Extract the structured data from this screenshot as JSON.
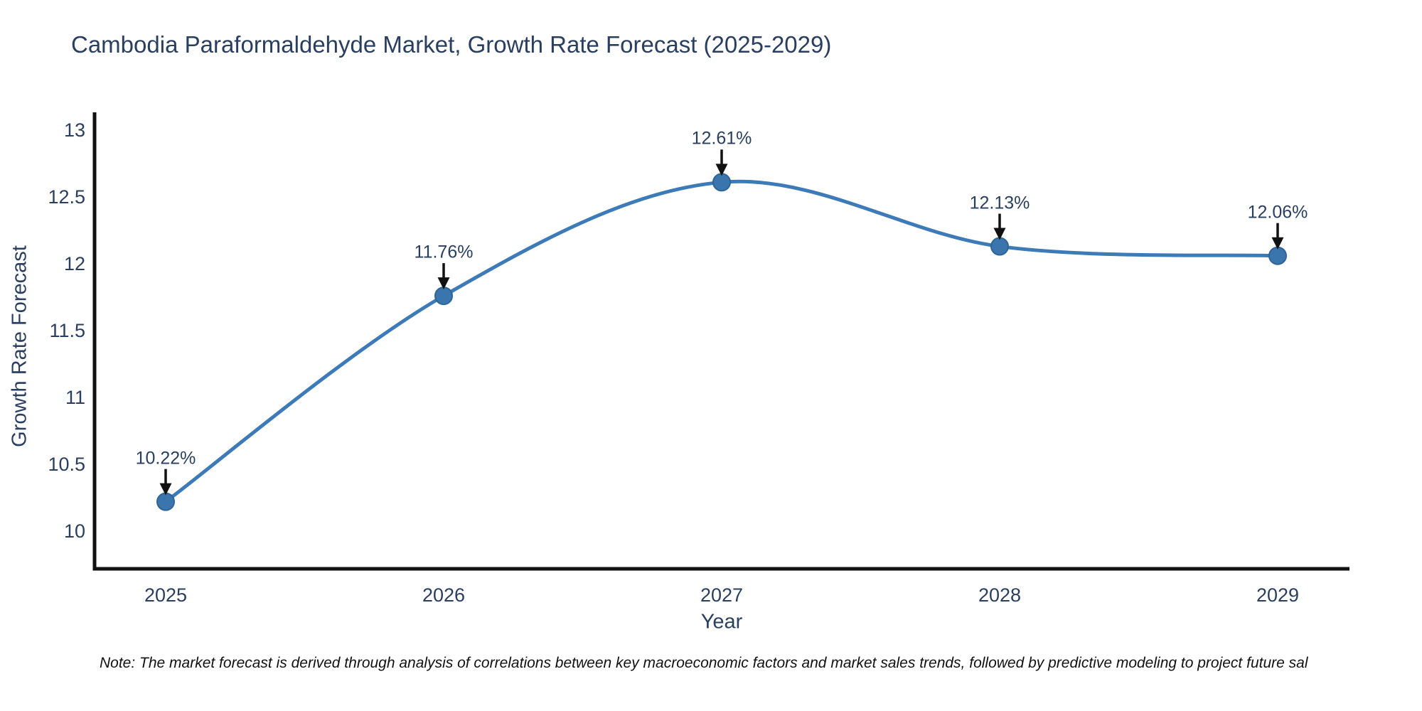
{
  "note_text": "Note: The market forecast is derived through analysis of correlations between key macroeconomic factors and market sales trends, followed by predictive modeling to project future sal",
  "chart_data": {
    "type": "line",
    "title": "Cambodia Paraformaldehyde Market, Growth Rate Forecast (2025-2029)",
    "xlabel": "Year",
    "ylabel": "Growth Rate Forecast",
    "categories": [
      "2025",
      "2026",
      "2027",
      "2028",
      "2029"
    ],
    "series": [
      {
        "name": "Growth Rate Forecast",
        "values": [
          10.22,
          11.76,
          12.61,
          12.13,
          12.06
        ],
        "point_labels": [
          "10.22%",
          "11.76%",
          "12.61%",
          "12.13%",
          "12.06%"
        ]
      }
    ],
    "yticks": [
      13,
      12.5,
      12,
      11.5,
      11,
      10.5,
      10
    ],
    "ylim": [
      9.72,
      13.13
    ],
    "grid": false,
    "legend_position": "none",
    "line_style": "smooth-spline",
    "marker": "circle",
    "annotation_style": "value-label-with-down-arrow",
    "colors": {
      "line": "#3d7ab8",
      "marker_fill": "#3a76ad",
      "marker_edge": "#2f6496",
      "axis": "#111111",
      "arrow": "#111111",
      "text": "#2a3f5f",
      "note": "#111111",
      "background": "#ffffff"
    }
  }
}
